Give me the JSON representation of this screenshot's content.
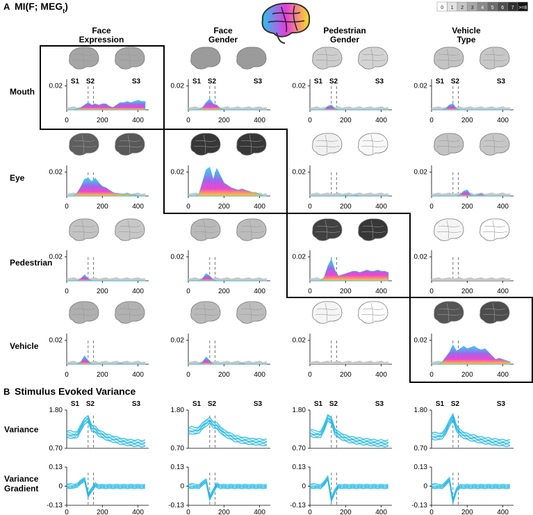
{
  "panel_a": {
    "letter": "A",
    "title_main": "MI(F; MEG",
    "title_sub": "t",
    "title_end": ")",
    "colorbar_ticks": [
      "0",
      "1",
      "2",
      "3",
      "4",
      "5",
      "6",
      "7",
      ">=8"
    ],
    "columns": [
      {
        "line1": "Face",
        "line2": "Expression"
      },
      {
        "line1": "Face",
        "line2": "Gender"
      },
      {
        "line1": "Pedestrian",
        "line2": "Gender"
      },
      {
        "line1": "Vehicle",
        "line2": "Type"
      }
    ],
    "rows": [
      "Mouth",
      "Eye",
      "Pedestrian",
      "Vehicle"
    ],
    "stage_labels": [
      "S1",
      "S2",
      "S3"
    ],
    "y_tick": "0.02",
    "x_ticks": [
      "0",
      "200",
      "400"
    ],
    "highlight": [
      0,
      1,
      2,
      3
    ]
  },
  "panel_b": {
    "letter": "B",
    "title": "Stimulus Evoked Variance",
    "rows": [
      {
        "label_lines": [
          "Variance"
        ],
        "yticks": [
          "1.80",
          "0.70"
        ]
      },
      {
        "label_lines": [
          "Variance",
          "Gradient"
        ],
        "yticks": [
          "0.13",
          "0",
          "-0.13"
        ]
      }
    ],
    "stage_labels": [
      "S1",
      "S2",
      "S3"
    ],
    "x_ticks": [
      "0",
      "200",
      "400"
    ]
  },
  "chart_data": [
    {
      "type": "area",
      "title": "MI(F; MEGt)",
      "x": [
        0,
        20,
        40,
        60,
        80,
        100,
        120,
        140,
        160,
        180,
        200,
        220,
        240,
        260,
        280,
        300,
        320,
        340,
        360,
        380,
        400,
        420,
        440
      ],
      "xlim": [
        0,
        460
      ],
      "ylim": [
        0,
        0.028
      ],
      "stage_markers_ms": [
        120,
        150
      ],
      "cells": [
        {
          "row": "Mouth",
          "col": "Face Expression",
          "values": [
            0,
            0,
            0,
            0.001,
            0.002,
            0.004,
            0.006,
            0.004,
            0.005,
            0.004,
            0.005,
            0.005,
            0.003,
            0.002,
            0.004,
            0.006,
            0.006,
            0.007,
            0.006,
            0.007,
            0.008,
            0.007,
            0.007
          ]
        },
        {
          "row": "Mouth",
          "col": "Face Gender",
          "values": [
            0,
            0,
            0,
            0,
            0.002,
            0.006,
            0.009,
            0.005,
            0.004,
            0.001,
            0,
            0,
            0,
            0,
            0,
            0,
            0,
            0,
            0,
            0,
            0,
            0,
            0
          ]
        },
        {
          "row": "Mouth",
          "col": "Pedestrian Gender",
          "values": [
            0,
            0,
            0,
            0,
            0,
            0.003,
            0.004,
            0.001,
            0,
            0,
            0,
            0,
            0,
            0,
            0,
            0,
            0,
            0,
            0,
            0,
            0,
            0,
            0
          ]
        },
        {
          "row": "Mouth",
          "col": "Vehicle Type",
          "values": [
            0,
            0,
            0,
            0,
            0.001,
            0.004,
            0.005,
            0.001,
            0,
            0,
            0,
            0,
            0,
            0,
            0,
            0,
            0,
            0,
            0,
            0,
            0,
            0,
            0
          ]
        },
        {
          "row": "Eye",
          "col": "Face Expression",
          "values": [
            0,
            0,
            0,
            0.003,
            0.008,
            0.014,
            0.015,
            0.012,
            0.015,
            0.011,
            0.008,
            0.007,
            0.005,
            0.003,
            0.002,
            0.002,
            0.001,
            0.002,
            0.001,
            0.001,
            0,
            0,
            0
          ]
        },
        {
          "row": "Eye",
          "col": "Face Gender",
          "values": [
            0,
            0,
            0,
            0.002,
            0.012,
            0.022,
            0.024,
            0.014,
            0.023,
            0.017,
            0.011,
            0.009,
            0.007,
            0.006,
            0.005,
            0.006,
            0.005,
            0.004,
            0.003,
            0.003,
            0.001,
            0,
            0
          ]
        },
        {
          "row": "Eye",
          "col": "Pedestrian Gender",
          "values": [
            0,
            0,
            0,
            0,
            0,
            0,
            0,
            0,
            0,
            0,
            0.0005,
            0,
            0,
            0.0005,
            0,
            0,
            0,
            0,
            0,
            0,
            0,
            0,
            0
          ]
        },
        {
          "row": "Eye",
          "col": "Vehicle Type",
          "values": [
            0,
            0,
            0,
            0,
            0,
            0,
            0,
            0,
            0.001,
            0.004,
            0.005,
            0.001,
            0,
            0.001,
            0.002,
            0,
            0,
            0,
            0,
            0,
            0,
            0,
            0
          ]
        },
        {
          "row": "Pedestrian",
          "col": "Face Expression",
          "values": [
            0,
            0,
            0,
            0,
            0.002,
            0.005,
            0.002,
            0,
            0,
            0,
            0,
            0,
            0,
            0,
            0,
            0,
            0,
            0,
            0,
            0,
            0,
            0,
            0
          ]
        },
        {
          "row": "Pedestrian",
          "col": "Face Gender",
          "values": [
            0,
            0,
            0,
            0,
            0.002,
            0.006,
            0.004,
            0.001,
            0,
            0,
            0,
            0,
            0,
            0,
            0,
            0,
            0,
            0,
            0,
            0,
            0,
            0,
            0
          ]
        },
        {
          "row": "Pedestrian",
          "col": "Pedestrian Gender",
          "values": [
            0,
            0,
            0,
            0,
            0.003,
            0.012,
            0.018,
            0.009,
            0.004,
            0.005,
            0.006,
            0.007,
            0.008,
            0.008,
            0.007,
            0.008,
            0.009,
            0.008,
            0.008,
            0.009,
            0.008,
            0.008,
            0.007
          ]
        },
        {
          "row": "Pedestrian",
          "col": "Vehicle Type",
          "values": [
            0,
            0,
            0,
            0,
            0,
            0,
            0,
            0,
            0,
            0,
            0,
            0,
            0,
            0,
            0,
            0,
            0,
            0,
            0,
            0,
            0,
            0,
            0
          ]
        },
        {
          "row": "Vehicle",
          "col": "Face Expression",
          "values": [
            0,
            0,
            0,
            0,
            0.002,
            0.007,
            0.003,
            0,
            0,
            0,
            0,
            0,
            0,
            0,
            0,
            0.001,
            0,
            0,
            0,
            0,
            0,
            0,
            0
          ]
        },
        {
          "row": "Vehicle",
          "col": "Face Gender",
          "values": [
            0,
            0,
            0,
            0,
            0.002,
            0.006,
            0.003,
            0,
            0,
            0,
            0,
            0,
            0,
            0,
            0,
            0.001,
            0,
            0,
            0,
            0,
            0,
            0,
            0
          ]
        },
        {
          "row": "Vehicle",
          "col": "Pedestrian Gender",
          "values": [
            0,
            0,
            0,
            0,
            0,
            0,
            0,
            0,
            0,
            0,
            0,
            0,
            0,
            0,
            0,
            0,
            0,
            0,
            0,
            0,
            0,
            0,
            0
          ]
        },
        {
          "row": "Vehicle",
          "col": "Vehicle Type",
          "values": [
            0,
            0,
            0,
            0.002,
            0.006,
            0.01,
            0.016,
            0.011,
            0.013,
            0.015,
            0.013,
            0.014,
            0.015,
            0.013,
            0.012,
            0.013,
            0.01,
            0.007,
            0.004,
            0.005,
            0.004,
            0.003,
            0.002
          ]
        }
      ]
    },
    {
      "type": "line",
      "title": "Stimulus Evoked Variance",
      "x": [
        0,
        20,
        40,
        60,
        80,
        100,
        120,
        140,
        160,
        180,
        200,
        220,
        240,
        260,
        280,
        300,
        320,
        340,
        360,
        380,
        400,
        420,
        440
      ],
      "xlim": [
        0,
        460
      ],
      "stage_markers_ms": [
        120,
        150
      ],
      "variance": {
        "ylabel": "Variance",
        "ylim": [
          0.7,
          1.8
        ],
        "series": [
          {
            "col": "Face Expression",
            "values": [
              1.1,
              1.1,
              1.08,
              1.12,
              1.3,
              1.5,
              1.55,
              1.3,
              1.25,
              1.15,
              1.1,
              1.05,
              1.0,
              0.98,
              0.95,
              0.92,
              0.9,
              0.88,
              0.87,
              0.86,
              0.86,
              0.85,
              0.85
            ]
          },
          {
            "col": "Face Gender",
            "values": [
              1.2,
              1.22,
              1.2,
              1.25,
              1.35,
              1.45,
              1.5,
              1.4,
              1.35,
              1.25,
              1.15,
              1.1,
              1.05,
              1.0,
              0.97,
              0.95,
              0.93,
              0.92,
              0.9,
              0.9,
              0.89,
              0.88,
              0.88
            ]
          },
          {
            "col": "Pedestrian Gender",
            "values": [
              1.15,
              1.12,
              1.1,
              1.12,
              1.3,
              1.6,
              1.5,
              1.2,
              1.1,
              1.05,
              1.0,
              0.97,
              0.95,
              0.93,
              0.92,
              0.9,
              0.9,
              0.88,
              0.87,
              0.86,
              0.86,
              0.85,
              0.85
            ]
          },
          {
            "col": "Vehicle Type",
            "values": [
              1.05,
              1.05,
              1.04,
              1.08,
              1.2,
              1.45,
              1.6,
              1.3,
              1.15,
              1.1,
              1.05,
              1.02,
              1.0,
              0.97,
              0.95,
              0.93,
              0.92,
              0.9,
              0.89,
              0.88,
              0.87,
              0.86,
              0.86
            ]
          }
        ]
      },
      "variance_gradient": {
        "ylabel": "Variance Gradient",
        "ylim": [
          -0.13,
          0.13
        ],
        "series": [
          {
            "col": "Face Expression",
            "values": [
              0,
              0,
              0,
              0.01,
              0.03,
              0.05,
              -0.06,
              -0.02,
              0.01,
              0,
              0,
              0,
              0,
              0,
              0,
              0,
              0,
              0,
              0,
              0,
              0,
              0,
              0
            ]
          },
          {
            "col": "Face Gender",
            "values": [
              0,
              0,
              0,
              0,
              0.02,
              0.04,
              -0.08,
              -0.03,
              0.01,
              0,
              0,
              0,
              0,
              0,
              0,
              0,
              0,
              0,
              0,
              0,
              0,
              0,
              0
            ]
          },
          {
            "col": "Pedestrian Gender",
            "values": [
              0,
              0,
              0,
              0,
              0.02,
              0.06,
              -0.09,
              -0.03,
              0,
              0,
              0,
              0,
              0,
              0,
              0,
              0,
              0,
              0,
              0,
              0,
              0,
              0,
              0
            ]
          },
          {
            "col": "Vehicle Type",
            "values": [
              0,
              0,
              0,
              0,
              0.02,
              0.05,
              -0.1,
              -0.02,
              0,
              0,
              0,
              0,
              0,
              0,
              0,
              0,
              0,
              0,
              0,
              0,
              0,
              0,
              0
            ]
          }
        ]
      }
    }
  ]
}
